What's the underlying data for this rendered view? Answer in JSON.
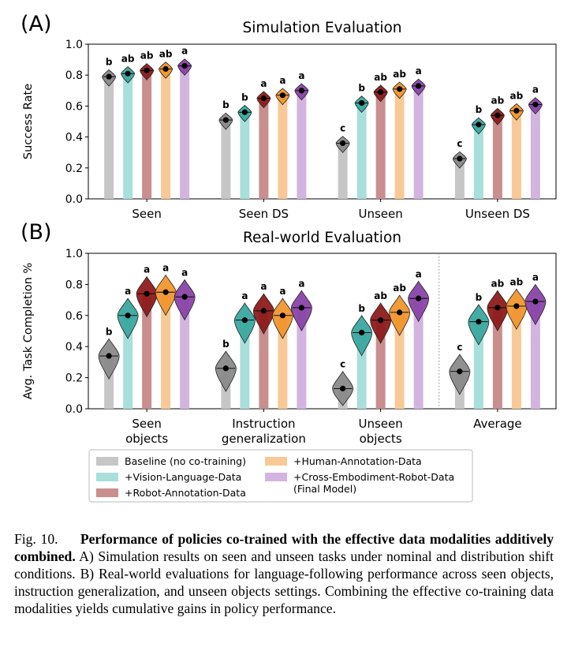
{
  "colors": {
    "baseline": "#c6c6c6",
    "vision_language": "#a8dfdb",
    "robot_annotation": "#c98e8e",
    "human_annotation": "#f8c996",
    "cross_embodiment": "#d3b4e0",
    "violin_baseline": "#8a8a8a",
    "violin_vision_language": "#3aa8a0",
    "violin_robot_annotation": "#8e1b1b",
    "violin_human_annotation": "#f0962e",
    "violin_cross_embodiment": "#8a45a8"
  },
  "legend": {
    "items": [
      {
        "key": "baseline",
        "label": "Baseline (no co-training)"
      },
      {
        "key": "vision_language",
        "label": "+Vision-Language-Data"
      },
      {
        "key": "robot_annotation",
        "label": "+Robot-Annotation-Data"
      },
      {
        "key": "human_annotation",
        "label": "+Human-Annotation-Data"
      },
      {
        "key": "cross_embodiment",
        "label": "+Cross-Embodiment-Robot-Data",
        "label2": "(Final Model)"
      }
    ]
  },
  "caption": {
    "label": "Fig. 10.",
    "bold": "Performance of policies co-trained with the effective data modalities additively combined.",
    "text": " A) Simulation results on seen and unseen tasks under nominal and distribution shift conditions. B) Real-world evaluations for language-following performance across seen objects, instruction generalization, and unseen objects settings. Combining the effective co-training data modalities yields cumulative gains in policy performance."
  },
  "chart_data": [
    {
      "type": "bar",
      "panel": "(A)",
      "title": "Simulation Evaluation",
      "ylabel": "Success Rate",
      "ylim": [
        0.0,
        1.0
      ],
      "yticks": [
        "0.0",
        "0.2",
        "0.4",
        "0.6",
        "0.8",
        "1.0"
      ],
      "categories": [
        "Seen",
        "Seen DS",
        "Unseen",
        "Unseen DS"
      ],
      "series": [
        {
          "name": "Baseline (no co-training)",
          "key": "baseline",
          "values": [
            0.79,
            0.51,
            0.36,
            0.26
          ],
          "letters": [
            "b",
            "b",
            "c",
            "c"
          ]
        },
        {
          "name": "+Vision-Language-Data",
          "key": "vision_language",
          "values": [
            0.81,
            0.56,
            0.62,
            0.48
          ],
          "letters": [
            "ab",
            "b",
            "b",
            "b"
          ]
        },
        {
          "name": "+Robot-Annotation-Data",
          "key": "robot_annotation",
          "values": [
            0.83,
            0.65,
            0.69,
            0.54
          ],
          "letters": [
            "ab",
            "a",
            "ab",
            "ab"
          ]
        },
        {
          "name": "+Human-Annotation-Data",
          "key": "human_annotation",
          "values": [
            0.84,
            0.67,
            0.71,
            0.57
          ],
          "letters": [
            "ab",
            "a",
            "ab",
            "ab"
          ]
        },
        {
          "name": "+Cross-Embodiment-Robot-Data (Final Model)",
          "key": "cross_embodiment",
          "values": [
            0.86,
            0.7,
            0.73,
            0.61
          ],
          "letters": [
            "a",
            "a",
            "a",
            "a"
          ]
        }
      ]
    },
    {
      "type": "bar",
      "panel": "(B)",
      "title": "Real-world Evaluation",
      "ylabel": "Avg. Task Completion %",
      "ylim": [
        0.0,
        1.0
      ],
      "yticks": [
        "0.0",
        "0.2",
        "0.4",
        "0.6",
        "0.8",
        "1.0"
      ],
      "categories": [
        "Seen\nobjects",
        "Instruction\ngeneralization",
        "Unseen\nobjects",
        "Average"
      ],
      "series": [
        {
          "name": "Baseline (no co-training)",
          "key": "baseline",
          "values": [
            0.34,
            0.26,
            0.13,
            0.24
          ],
          "letters": [
            "b",
            "b",
            "c",
            "c"
          ]
        },
        {
          "name": "+Vision-Language-Data",
          "key": "vision_language",
          "values": [
            0.6,
            0.57,
            0.49,
            0.56
          ],
          "letters": [
            "a",
            "a",
            "b",
            "b"
          ]
        },
        {
          "name": "+Robot-Annotation-Data",
          "key": "robot_annotation",
          "values": [
            0.74,
            0.63,
            0.57,
            0.65
          ],
          "letters": [
            "a",
            "a",
            "ab",
            "ab"
          ]
        },
        {
          "name": "+Human-Annotation-Data",
          "key": "human_annotation",
          "values": [
            0.75,
            0.6,
            0.62,
            0.66
          ],
          "letters": [
            "a",
            "a",
            "ab",
            "ab"
          ]
        },
        {
          "name": "+Cross-Embodiment-Robot-Data (Final Model)",
          "key": "cross_embodiment",
          "values": [
            0.72,
            0.65,
            0.71,
            0.69
          ],
          "letters": [
            "a",
            "a",
            "a",
            "a"
          ]
        }
      ]
    }
  ]
}
